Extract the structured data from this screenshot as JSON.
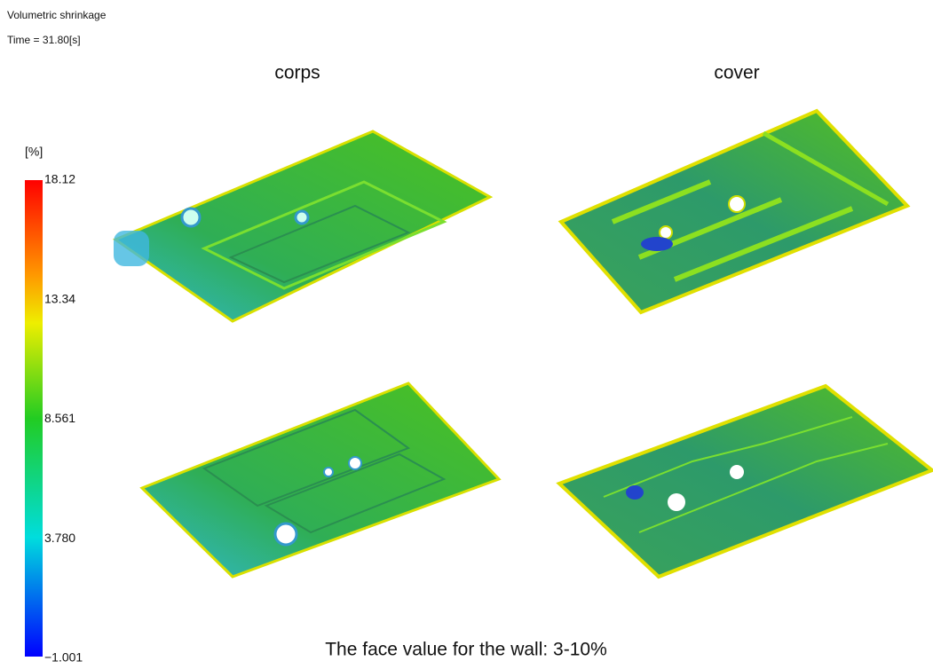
{
  "header": {
    "title": "Volumetric shrinkage",
    "time": "Time = 31.80[s]"
  },
  "columns": [
    "corps",
    "cover"
  ],
  "color_scale": {
    "unit": "[%]",
    "labels": [
      "18.12",
      "13.34",
      "8.561",
      "3.780",
      "−1.001"
    ]
  },
  "caption": "The face value for the wall: 3-10%"
}
